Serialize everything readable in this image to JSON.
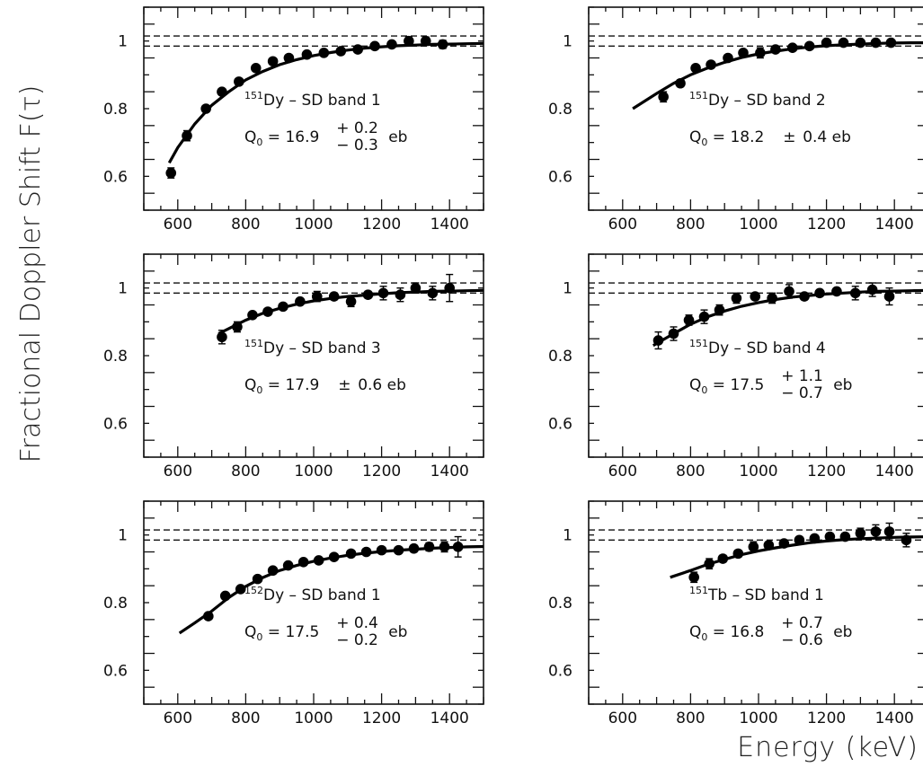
{
  "figure": {
    "ylabel": "Fractional Doppler Shift F(τ)",
    "xlabel": "Energy (keV)"
  },
  "chart_data": [
    {
      "type": "scatter",
      "nucleus_mass": "151",
      "nucleus_sym": "Dy",
      "band_text": " – SD band 1",
      "q_prefix": "Q",
      "q_sub": "0",
      "q_value": " = 16.9",
      "q_plus": "+ 0.2",
      "q_minus": "− 0.3",
      "q_sym": "",
      "q_unit": "eb",
      "xlim": [
        500,
        1500
      ],
      "ylim": [
        0.5,
        1.1
      ],
      "xticks": [
        "600",
        "800",
        "1000",
        "1200",
        "1400"
      ],
      "yticks": [
        "0.6",
        "0.8",
        "1"
      ],
      "ref_lines": [
        0.985,
        1.015
      ],
      "x": [
        580,
        627,
        683,
        730,
        780,
        830,
        880,
        927,
        980,
        1030,
        1080,
        1130,
        1180,
        1230,
        1280,
        1330,
        1380
      ],
      "y": [
        0.61,
        0.72,
        0.8,
        0.85,
        0.88,
        0.92,
        0.94,
        0.95,
        0.96,
        0.965,
        0.97,
        0.975,
        0.985,
        0.99,
        1.0,
        1.0,
        0.99
      ],
      "yerr": [
        0.015,
        0.015,
        0.008,
        0.008,
        0.008,
        0.008,
        0.008,
        0.008,
        0.008,
        0.008,
        0.008,
        0.008,
        0.008,
        0.008,
        0.012,
        0.012,
        0.012
      ],
      "fit_x": [
        575,
        600,
        650,
        700,
        750,
        800,
        850,
        900,
        950,
        1000,
        1050,
        1100,
        1150,
        1200,
        1250,
        1300,
        1350,
        1400,
        1450,
        1500
      ],
      "fit_y": [
        0.64,
        0.685,
        0.755,
        0.81,
        0.85,
        0.885,
        0.91,
        0.93,
        0.945,
        0.957,
        0.966,
        0.973,
        0.979,
        0.983,
        0.986,
        0.988,
        0.99,
        0.991,
        0.992,
        0.993
      ]
    },
    {
      "type": "scatter",
      "nucleus_mass": "151",
      "nucleus_sym": "Dy",
      "band_text": " – SD band 2",
      "q_prefix": "Q",
      "q_sub": "0",
      "q_value": " = 18.2",
      "q_plus": "",
      "q_minus": "",
      "q_sym": "±",
      "q_unit": "0.4 eb",
      "xlim": [
        500,
        1500
      ],
      "ylim": [
        0.5,
        1.1
      ],
      "xticks": [
        "600",
        "800",
        "1000",
        "1200",
        "1400"
      ],
      "yticks": [
        "0.6",
        "0.8",
        "1"
      ],
      "ref_lines": [
        0.985,
        1.015
      ],
      "x": [
        720,
        770,
        815,
        860,
        910,
        955,
        1005,
        1050,
        1100,
        1150,
        1200,
        1250,
        1300,
        1345,
        1390
      ],
      "y": [
        0.835,
        0.875,
        0.92,
        0.93,
        0.95,
        0.965,
        0.965,
        0.975,
        0.98,
        0.985,
        0.995,
        0.995,
        0.995,
        0.995,
        0.995
      ],
      "yerr": [
        0.015,
        0.01,
        0.008,
        0.008,
        0.008,
        0.008,
        0.015,
        0.008,
        0.008,
        0.008,
        0.008,
        0.008,
        0.008,
        0.008,
        0.008
      ],
      "fit_x": [
        630,
        700,
        750,
        800,
        850,
        900,
        950,
        1000,
        1050,
        1100,
        1150,
        1200,
        1250,
        1300,
        1350,
        1400,
        1450,
        1500
      ],
      "fit_y": [
        0.8,
        0.845,
        0.875,
        0.9,
        0.92,
        0.937,
        0.951,
        0.962,
        0.97,
        0.977,
        0.982,
        0.986,
        0.989,
        0.991,
        0.993,
        0.994,
        0.995,
        0.995
      ]
    },
    {
      "type": "scatter",
      "nucleus_mass": "151",
      "nucleus_sym": "Dy",
      "band_text": " – SD band 3",
      "q_prefix": "Q",
      "q_sub": "0",
      "q_value": " = 17.9",
      "q_plus": "",
      "q_minus": "",
      "q_sym": "±",
      "q_unit": "0.6 eb",
      "xlim": [
        500,
        1500
      ],
      "ylim": [
        0.5,
        1.1
      ],
      "xticks": [
        "600",
        "800",
        "1000",
        "1200",
        "1400"
      ],
      "yticks": [
        "0.6",
        "0.8",
        "1"
      ],
      "ref_lines": [
        0.985,
        1.015
      ],
      "x": [
        730,
        775,
        820,
        865,
        910,
        960,
        1010,
        1060,
        1110,
        1160,
        1205,
        1255,
        1300,
        1350,
        1400
      ],
      "y": [
        0.855,
        0.885,
        0.92,
        0.93,
        0.945,
        0.96,
        0.975,
        0.975,
        0.96,
        0.98,
        0.985,
        0.98,
        1.0,
        0.985,
        1.0
      ],
      "yerr": [
        0.02,
        0.015,
        0.008,
        0.008,
        0.008,
        0.008,
        0.015,
        0.01,
        0.015,
        0.01,
        0.02,
        0.02,
        0.015,
        0.02,
        0.04
      ],
      "fit_x": [
        720,
        750,
        800,
        850,
        900,
        950,
        1000,
        1050,
        1100,
        1150,
        1200,
        1250,
        1300,
        1350,
        1400,
        1450,
        1500
      ],
      "fit_y": [
        0.865,
        0.88,
        0.905,
        0.925,
        0.94,
        0.952,
        0.962,
        0.969,
        0.975,
        0.979,
        0.983,
        0.986,
        0.988,
        0.99,
        0.991,
        0.992,
        0.993
      ]
    },
    {
      "type": "scatter",
      "nucleus_mass": "151",
      "nucleus_sym": "Dy",
      "band_text": " – SD band 4",
      "q_prefix": "Q",
      "q_sub": "0",
      "q_value": " = 17.5",
      "q_plus": "+ 1.1",
      "q_minus": "− 0.7",
      "q_sym": "",
      "q_unit": "eb",
      "xlim": [
        500,
        1500
      ],
      "ylim": [
        0.5,
        1.1
      ],
      "xticks": [
        "600",
        "800",
        "1000",
        "1200",
        "1400"
      ],
      "yticks": [
        "0.6",
        "0.8",
        "1"
      ],
      "ref_lines": [
        0.985,
        1.015
      ],
      "x": [
        705,
        750,
        795,
        840,
        885,
        935,
        990,
        1040,
        1090,
        1135,
        1180,
        1230,
        1285,
        1335,
        1385
      ],
      "y": [
        0.845,
        0.865,
        0.905,
        0.915,
        0.935,
        0.97,
        0.975,
        0.97,
        0.99,
        0.975,
        0.985,
        0.99,
        0.985,
        0.995,
        0.975
      ],
      "yerr": [
        0.025,
        0.02,
        0.015,
        0.02,
        0.015,
        0.015,
        0.01,
        0.015,
        0.02,
        0.01,
        0.01,
        0.01,
        0.02,
        0.02,
        0.025
      ],
      "fit_x": [
        690,
        750,
        800,
        850,
        900,
        950,
        1000,
        1050,
        1100,
        1150,
        1200,
        1250,
        1300,
        1350,
        1400,
        1450,
        1500
      ],
      "fit_y": [
        0.83,
        0.865,
        0.893,
        0.915,
        0.932,
        0.946,
        0.957,
        0.966,
        0.973,
        0.978,
        0.982,
        0.985,
        0.988,
        0.99,
        0.991,
        0.992,
        0.993
      ]
    },
    {
      "type": "scatter",
      "nucleus_mass": "152",
      "nucleus_sym": "Dy",
      "band_text": " – SD band 1",
      "q_prefix": "Q",
      "q_sub": "0",
      "q_value": " = 17.5",
      "q_plus": "+ 0.4",
      "q_minus": "− 0.2",
      "q_sym": "",
      "q_unit": "eb",
      "xlim": [
        500,
        1500
      ],
      "ylim": [
        0.5,
        1.1
      ],
      "xticks": [
        "600",
        "800",
        "1000",
        "1200",
        "1400"
      ],
      "yticks": [
        "0.6",
        "0.8",
        "1"
      ],
      "ref_lines": [
        0.985,
        1.015
      ],
      "x": [
        690,
        740,
        785,
        835,
        880,
        925,
        970,
        1015,
        1060,
        1110,
        1155,
        1200,
        1250,
        1295,
        1340,
        1385,
        1425
      ],
      "y": [
        0.76,
        0.82,
        0.84,
        0.87,
        0.895,
        0.91,
        0.92,
        0.925,
        0.935,
        0.945,
        0.95,
        0.955,
        0.955,
        0.96,
        0.965,
        0.965,
        0.965
      ],
      "yerr": [
        0.008,
        0.008,
        0.008,
        0.008,
        0.008,
        0.008,
        0.008,
        0.008,
        0.008,
        0.008,
        0.008,
        0.008,
        0.008,
        0.01,
        0.012,
        0.015,
        0.03
      ],
      "fit_x": [
        605,
        650,
        700,
        750,
        800,
        850,
        900,
        950,
        1000,
        1050,
        1100,
        1150,
        1200,
        1250,
        1300,
        1350,
        1400,
        1450,
        1500
      ],
      "fit_y": [
        0.71,
        0.74,
        0.775,
        0.815,
        0.848,
        0.874,
        0.895,
        0.91,
        0.922,
        0.932,
        0.94,
        0.946,
        0.951,
        0.955,
        0.958,
        0.961,
        0.963,
        0.965,
        0.966
      ]
    },
    {
      "type": "scatter",
      "nucleus_mass": "151",
      "nucleus_sym": "Tb",
      "band_text": " – SD band 1",
      "q_prefix": "Q",
      "q_sub": "0",
      "q_value": " = 16.8",
      "q_plus": "+ 0.7",
      "q_minus": "− 0.6",
      "q_sym": "",
      "q_unit": "eb",
      "xlim": [
        500,
        1500
      ],
      "ylim": [
        0.5,
        1.1
      ],
      "xticks": [
        "600",
        "800",
        "1000",
        "1200",
        "1400"
      ],
      "yticks": [
        "0.6",
        "0.8",
        "1"
      ],
      "ref_lines": [
        0.985,
        1.015
      ],
      "x": [
        810,
        855,
        895,
        940,
        985,
        1030,
        1075,
        1120,
        1165,
        1210,
        1255,
        1300,
        1345,
        1385,
        1435
      ],
      "y": [
        0.875,
        0.915,
        0.93,
        0.945,
        0.965,
        0.97,
        0.975,
        0.985,
        0.99,
        0.995,
        0.995,
        1.005,
        1.01,
        1.01,
        0.985
      ],
      "yerr": [
        0.015,
        0.015,
        0.01,
        0.01,
        0.015,
        0.01,
        0.01,
        0.01,
        0.01,
        0.01,
        0.01,
        0.015,
        0.02,
        0.025,
        0.02
      ],
      "fit_x": [
        740,
        800,
        850,
        900,
        950,
        1000,
        1050,
        1100,
        1150,
        1200,
        1250,
        1300,
        1350,
        1400,
        1450,
        1500
      ],
      "fit_y": [
        0.875,
        0.895,
        0.913,
        0.928,
        0.942,
        0.953,
        0.962,
        0.97,
        0.977,
        0.982,
        0.986,
        0.989,
        0.991,
        0.993,
        0.994,
        0.995
      ]
    }
  ]
}
